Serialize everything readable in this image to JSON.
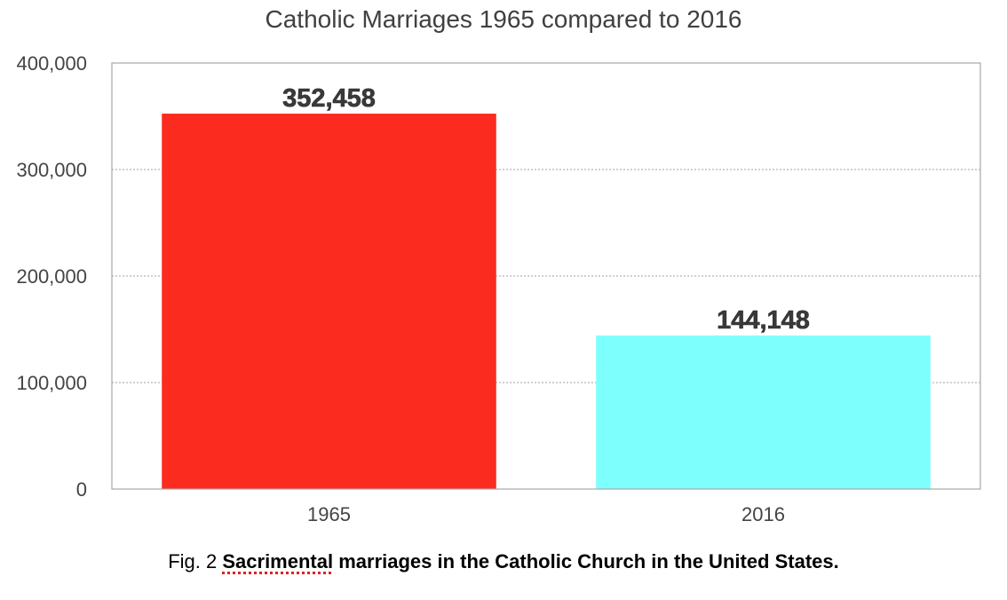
{
  "chart_data": {
    "type": "bar",
    "title": "Catholic Marriages 1965 compared to 2016",
    "xlabel": "",
    "ylabel": "",
    "categories": [
      "1965",
      "2016"
    ],
    "values": [
      352458,
      144148
    ],
    "data_labels": [
      "352,458",
      "144,148"
    ],
    "colors": [
      "#fc2b1f",
      "#7dfffe"
    ],
    "ylim": [
      0,
      400000
    ],
    "y_ticks": [
      0,
      100000,
      200000,
      300000,
      400000
    ],
    "y_tick_labels": [
      "0",
      "100,000",
      "200,000",
      "300,000",
      "400,000"
    ],
    "grid": true,
    "legend": "none"
  },
  "caption": {
    "prefix": "Fig. 2 ",
    "misspelled_word": "Sacrimental",
    "rest": " marriages in the Catholic Church in the United States."
  }
}
